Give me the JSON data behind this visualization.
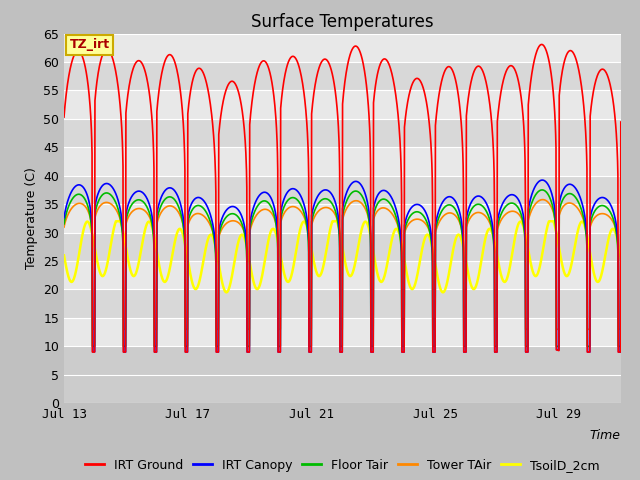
{
  "title": "Surface Temperatures",
  "ylabel": "Temperature (C)",
  "xlabel": "Time",
  "xlim_start": 0,
  "xlim_end": 18,
  "ylim": [
    0,
    65
  ],
  "yticks": [
    0,
    5,
    10,
    15,
    20,
    25,
    30,
    35,
    40,
    45,
    50,
    55,
    60,
    65
  ],
  "xtick_labels": [
    "Jul 13",
    "Jul 17",
    "Jul 21",
    "Jul 25",
    "Jul 29"
  ],
  "xtick_positions": [
    0,
    4,
    8,
    12,
    16
  ],
  "band_colors": [
    "#e8e8e8",
    "#d8d8d8"
  ],
  "below10_color": "#d0d0d0",
  "grid_color": "#ffffff",
  "fig_bg": "#c8c8c8",
  "series": {
    "IRT Ground": {
      "color": "#ff0000",
      "lw": 1.2
    },
    "IRT Canopy": {
      "color": "#0000ff",
      "lw": 1.2
    },
    "Floor Tair": {
      "color": "#00bb00",
      "lw": 1.2
    },
    "Tower TAir": {
      "color": "#ff8800",
      "lw": 1.2
    },
    "TsoilD_2cm": {
      "color": "#ffff00",
      "lw": 1.8
    }
  },
  "annotation_text": "TZ_irt",
  "annotation_bg": "#ffff99",
  "annotation_border": "#ccaa00",
  "annotation_text_color": "#aa0000",
  "title_fontsize": 12,
  "axis_label_fontsize": 9,
  "tick_fontsize": 9,
  "legend_fontsize": 9
}
